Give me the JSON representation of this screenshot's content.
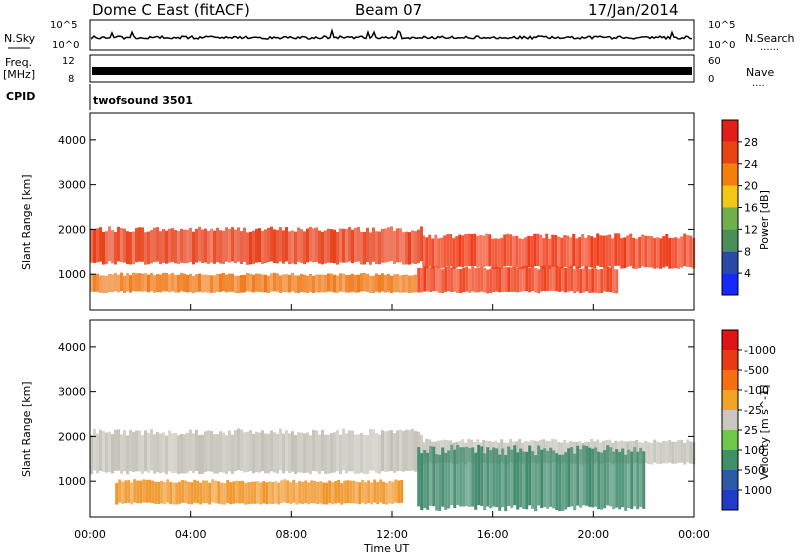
{
  "header": {
    "station": "Dome C East (fitACF)",
    "beam": "Beam 07",
    "date": "17/Jan/2014"
  },
  "labels": {
    "nsky": "N.Sky",
    "nsearch": "N.Search",
    "freq_line1": "Freq.",
    "freq_line2": "[MHz]",
    "nave": "Nave",
    "cpid": "CPID",
    "program": "twofsound 3501",
    "dots": "......",
    "dots_short": "...."
  },
  "chart_data": [
    {
      "type": "line",
      "name": "noise-panel",
      "left_ticks": [
        "10^5",
        "10^0"
      ],
      "right_ticks": [
        "10^5",
        "10^0"
      ],
      "ylabel_left": "N.Sky",
      "ylabel_right": "N.Search"
    },
    {
      "type": "line",
      "name": "freq-panel",
      "left_ticks": [
        "12",
        "8"
      ],
      "right_ticks": [
        "60",
        "0"
      ],
      "ylabel_left": "Freq. [MHz]",
      "ylabel_right": "Nave"
    },
    {
      "type": "heatmap",
      "name": "power-panel",
      "ylabel": "Slant Range [km]",
      "yticks": [
        1000,
        2000,
        3000,
        4000
      ],
      "ylim": [
        200,
        4600
      ],
      "xlim_hours": [
        0,
        24
      ],
      "colorbar_label": "Power [dB]",
      "colorbar_ticks": [
        "4",
        "8",
        "12",
        "16",
        "20",
        "24",
        "28"
      ],
      "colorbar_colors": [
        "#1428ff",
        "#2a4aa8",
        "#4a8e58",
        "#6fb04a",
        "#f2c814",
        "#f57f0c",
        "#e84410",
        "#e21e18"
      ],
      "bands": [
        {
          "t0": 0.0,
          "t1": 13.2,
          "r0": 1250,
          "r1": 2000,
          "color": "#e8401a"
        },
        {
          "t0": 13.2,
          "t1": 24.0,
          "r0": 1150,
          "r1": 1850,
          "color": "#f03a14"
        },
        {
          "t0": 0.0,
          "t1": 13.0,
          "r0": 600,
          "r1": 1000,
          "color": "#f07a1a"
        },
        {
          "t0": 13.0,
          "t1": 21.0,
          "r0": 600,
          "r1": 1150,
          "color": "#ef3c16"
        }
      ]
    },
    {
      "type": "heatmap",
      "name": "velocity-panel",
      "ylabel": "Slant Range [km]",
      "yticks": [
        1000,
        2000,
        3000,
        4000
      ],
      "ylim": [
        200,
        4600
      ],
      "xlim_hours": [
        0,
        24
      ],
      "colorbar_label": "Velocity [m s^-1]",
      "colorbar_ticks": [
        "1000",
        "500",
        "100",
        "25",
        "-25",
        "-100",
        "-500",
        "-1000"
      ],
      "colorbar_colors": [
        "#1f3cc8",
        "#2b5aa8",
        "#3f8f6a",
        "#6ec84a",
        "#c8c8bc",
        "#f2a424",
        "#f57012",
        "#ea3a12",
        "#e01414"
      ],
      "bands": [
        {
          "t0": 0.0,
          "t1": 13.2,
          "r0": 1200,
          "r1": 2100,
          "color": "#c4c2b8"
        },
        {
          "t0": 13.2,
          "t1": 24.0,
          "r0": 1400,
          "r1": 1900,
          "color": "#c4c2b8"
        },
        {
          "t0": 13.0,
          "t1": 22.0,
          "r0": 400,
          "r1": 1700,
          "color": "#3f8a6a"
        },
        {
          "t0": 1.0,
          "t1": 12.5,
          "r0": 500,
          "r1": 1000,
          "color": "#f09628"
        }
      ]
    }
  ],
  "xaxis": {
    "ticks": [
      "00:00",
      "04:00",
      "08:00",
      "12:00",
      "16:00",
      "20:00",
      "00:00"
    ],
    "label": "Time UT"
  }
}
